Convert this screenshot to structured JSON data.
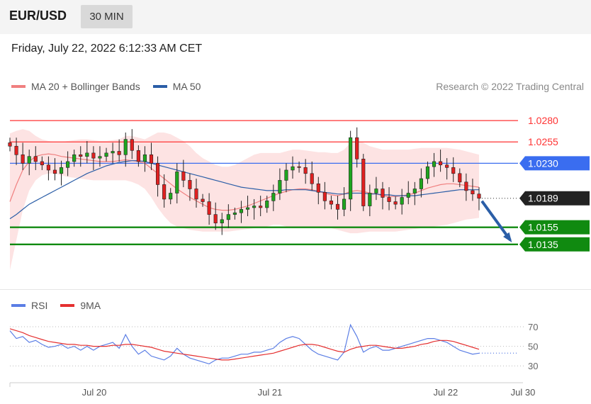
{
  "header": {
    "symbol": "EUR/USD",
    "interval": "30 MIN",
    "datetime": "Friday, July 22, 2022 6:12:33 AM CET"
  },
  "legend": {
    "ma20": {
      "label": "MA 20 + Bollinger Bands",
      "color": "#f08080"
    },
    "ma50": {
      "label": "MA 50",
      "color": "#2b5ea7"
    }
  },
  "credit": "Research © 2022 Trading Central",
  "rsi_legend": {
    "rsi": {
      "label": "RSI",
      "color": "#5b7ee5"
    },
    "ma9": {
      "label": "9MA",
      "color": "#e53030"
    }
  },
  "chart_data": [
    {
      "type": "line",
      "name": "price-chart",
      "ylim": [
        1.0085,
        1.0305
      ],
      "x_range": [
        0,
        7.3
      ],
      "x_ticks": [
        {
          "label": "Jul 20",
          "x": 1.2
        },
        {
          "label": "Jul 21",
          "x": 3.7
        },
        {
          "label": "Jul 22",
          "x": 6.2
        },
        {
          "label": "Jul 30",
          "x": 7.3
        }
      ],
      "levels": [
        {
          "label": "1.0280",
          "value": 1.028,
          "color": "#ff3333",
          "style": "resistance",
          "box": false
        },
        {
          "label": "1.0255",
          "value": 1.0255,
          "color": "#ff3333",
          "style": "resistance",
          "box": false
        },
        {
          "label": "1.0230",
          "value": 1.023,
          "color": "#3a6df0",
          "style": "pivot",
          "box": true
        },
        {
          "label": "1.0189",
          "value": 1.0189,
          "color": "#222222",
          "style": "last",
          "box": true
        },
        {
          "label": "1.0155",
          "value": 1.0155,
          "color": "#108a10",
          "style": "support",
          "box": true
        },
        {
          "label": "1.0135",
          "value": 1.0135,
          "color": "#108a10",
          "style": "support",
          "box": true
        }
      ],
      "price": [
        1.025,
        1.024,
        1.023,
        1.0238,
        1.0232,
        1.0228,
        1.0222,
        1.0218,
        1.0225,
        1.0232,
        1.024,
        1.0238,
        1.0242,
        1.0236,
        1.0238,
        1.0242,
        1.0244,
        1.024,
        1.0258,
        1.0245,
        1.0232,
        1.024,
        1.023,
        1.0205,
        1.0188,
        1.0195,
        1.022,
        1.021,
        1.02,
        1.0188,
        1.0185,
        1.017,
        1.016,
        1.0164,
        1.017,
        1.0172,
        1.0176,
        1.0178,
        1.018,
        1.0178,
        1.0186,
        1.0195,
        1.021,
        1.0222,
        1.0226,
        1.0225,
        1.0218,
        1.0206,
        1.0196,
        1.0186,
        1.0182,
        1.0176,
        1.0188,
        1.026,
        1.0235,
        1.018,
        1.0195,
        1.02,
        1.019,
        1.0185,
        1.0182,
        1.019,
        1.0195,
        1.02,
        1.0212,
        1.0226,
        1.0232,
        1.0228,
        1.0225,
        1.0218,
        1.0208,
        1.0198,
        1.0194,
        1.0189
      ],
      "ma20": [
        1.0185,
        1.0205,
        1.0222,
        1.0232,
        1.0238,
        1.024,
        1.0241,
        1.024,
        1.0238,
        1.0237,
        1.0236,
        1.0235,
        1.0234,
        1.0233,
        1.0232,
        1.0232,
        1.0232,
        1.0233,
        1.0234,
        1.0233,
        1.0232,
        1.023,
        1.0224,
        1.0218,
        1.0212,
        1.0206,
        1.02,
        1.0195,
        1.019,
        1.0186,
        1.0182,
        1.0178,
        1.0176,
        1.0175,
        1.0175,
        1.0176,
        1.0178,
        1.018,
        1.0183,
        1.0186,
        1.0189,
        1.0192,
        1.0195,
        1.0197,
        1.0199,
        1.02,
        1.02,
        1.0199,
        1.0197,
        1.0195,
        1.0193,
        1.0192,
        1.0194,
        1.0197,
        1.0198,
        1.0197,
        1.0195,
        1.0194,
        1.0192,
        1.0191,
        1.0191,
        1.0192,
        1.0193,
        1.0195,
        1.0198,
        1.0201,
        1.0203,
        1.0205,
        1.0206,
        1.0206,
        1.0205,
        1.0204,
        1.0203,
        1.0202
      ],
      "ma50": [
        1.0165,
        1.017,
        1.0176,
        1.0182,
        1.0186,
        1.019,
        1.0194,
        1.0198,
        1.0202,
        1.0206,
        1.021,
        1.0214,
        1.0218,
        1.0221,
        1.0224,
        1.0227,
        1.0229,
        1.0231,
        1.0232,
        1.0233,
        1.0233,
        1.0232,
        1.023,
        1.0228,
        1.0226,
        1.0224,
        1.0222,
        1.022,
        1.0218,
        1.0216,
        1.0214,
        1.0212,
        1.021,
        1.0208,
        1.0206,
        1.0204,
        1.0202,
        1.0201,
        1.02,
        1.0199,
        1.0198,
        1.0198,
        1.0198,
        1.0199,
        1.0199,
        1.0199,
        1.0199,
        1.0198,
        1.0197,
        1.0196,
        1.0195,
        1.0194,
        1.0194,
        1.0195,
        1.0195,
        1.0195,
        1.0194,
        1.0194,
        1.0193,
        1.0193,
        1.0192,
        1.0192,
        1.0192,
        1.0192,
        1.0193,
        1.0194,
        1.0195,
        1.0196,
        1.0197,
        1.0198,
        1.0199,
        1.0199,
        1.0199,
        1.0199
      ],
      "bb_upper": [
        1.0265,
        1.0268,
        1.027,
        1.0268,
        1.0262,
        1.0258,
        1.0256,
        1.0255,
        1.0255,
        1.0256,
        1.0257,
        1.0258,
        1.0258,
        1.0257,
        1.0256,
        1.0256,
        1.0257,
        1.0258,
        1.0262,
        1.0262,
        1.026,
        1.0258,
        1.0262,
        1.0266,
        1.0266,
        1.0264,
        1.026,
        1.0256,
        1.025,
        1.0242,
        1.0236,
        1.0232,
        1.0228,
        1.0226,
        1.0226,
        1.0228,
        1.0232,
        1.0236,
        1.024,
        1.0242,
        1.0242,
        1.0242,
        1.0242,
        1.0244,
        1.0246,
        1.0246,
        1.0245,
        1.0244,
        1.0243,
        1.0243,
        1.0242,
        1.0242,
        1.0246,
        1.0254,
        1.0256,
        1.0254,
        1.025,
        1.0248,
        1.0246,
        1.0246,
        1.0246,
        1.0246,
        1.0246,
        1.0247,
        1.0248,
        1.0248,
        1.0248,
        1.0248,
        1.0248,
        1.0247,
        1.0246,
        1.0244,
        1.0242,
        1.024
      ],
      "bb_lower": [
        1.0105,
        1.014,
        1.0175,
        1.0198,
        1.021,
        1.0216,
        1.0218,
        1.0218,
        1.0216,
        1.0214,
        1.0213,
        1.0212,
        1.0211,
        1.021,
        1.021,
        1.021,
        1.021,
        1.021,
        1.021,
        1.0208,
        1.0205,
        1.02,
        1.019,
        1.0178,
        1.0168,
        1.016,
        1.0156,
        1.0154,
        1.0152,
        1.0151,
        1.015,
        1.015,
        1.015,
        1.015,
        1.015,
        1.0151,
        1.0152,
        1.0153,
        1.0154,
        1.0155,
        1.0156,
        1.0158,
        1.0158,
        1.0156,
        1.0154,
        1.0154,
        1.0155,
        1.0155,
        1.0155,
        1.0154,
        1.0154,
        1.0152,
        1.015,
        1.0148,
        1.0148,
        1.0149,
        1.015,
        1.015,
        1.015,
        1.015,
        1.015,
        1.0151,
        1.0152,
        1.0153,
        1.0154,
        1.0155,
        1.0156,
        1.0157,
        1.0158,
        1.016,
        1.0162,
        1.0164,
        1.0165,
        1.0166
      ],
      "forecast": {
        "from": 1.0189,
        "to": 1.015
      }
    },
    {
      "type": "line",
      "name": "rsi-chart",
      "ylim": [
        20,
        78
      ],
      "levels": [
        {
          "label": "70",
          "value": 70
        },
        {
          "label": "50",
          "value": 50
        },
        {
          "label": "30",
          "value": 30
        }
      ],
      "last_value": 43,
      "series": [
        {
          "name": "RSI",
          "values": [
            66,
            58,
            60,
            54,
            56,
            52,
            49,
            50,
            52,
            48,
            50,
            46,
            50,
            46,
            50,
            52,
            54,
            48,
            62,
            50,
            42,
            46,
            40,
            38,
            36,
            40,
            48,
            42,
            38,
            36,
            34,
            32,
            36,
            38,
            38,
            40,
            42,
            42,
            44,
            44,
            46,
            48,
            54,
            58,
            60,
            58,
            52,
            46,
            42,
            40,
            38,
            36,
            44,
            72,
            60,
            44,
            48,
            50,
            46,
            46,
            48,
            50,
            52,
            54,
            56,
            58,
            58,
            56,
            54,
            50,
            46,
            44,
            42,
            43
          ]
        },
        {
          "name": "9MA",
          "values": [
            68,
            66,
            64,
            61,
            59,
            57,
            55,
            54,
            53,
            52,
            52,
            51,
            51,
            50,
            50,
            50,
            51,
            51,
            52,
            52,
            51,
            50,
            49,
            47,
            45,
            44,
            43,
            42,
            41,
            40,
            39,
            38,
            37,
            36,
            36,
            37,
            38,
            39,
            40,
            41,
            42,
            43,
            45,
            47,
            49,
            51,
            52,
            52,
            51,
            49,
            47,
            45,
            44,
            47,
            49,
            50,
            51,
            51,
            50,
            49,
            48,
            48,
            49,
            50,
            52,
            53,
            55,
            56,
            56,
            55,
            53,
            51,
            49,
            47
          ]
        }
      ]
    }
  ]
}
